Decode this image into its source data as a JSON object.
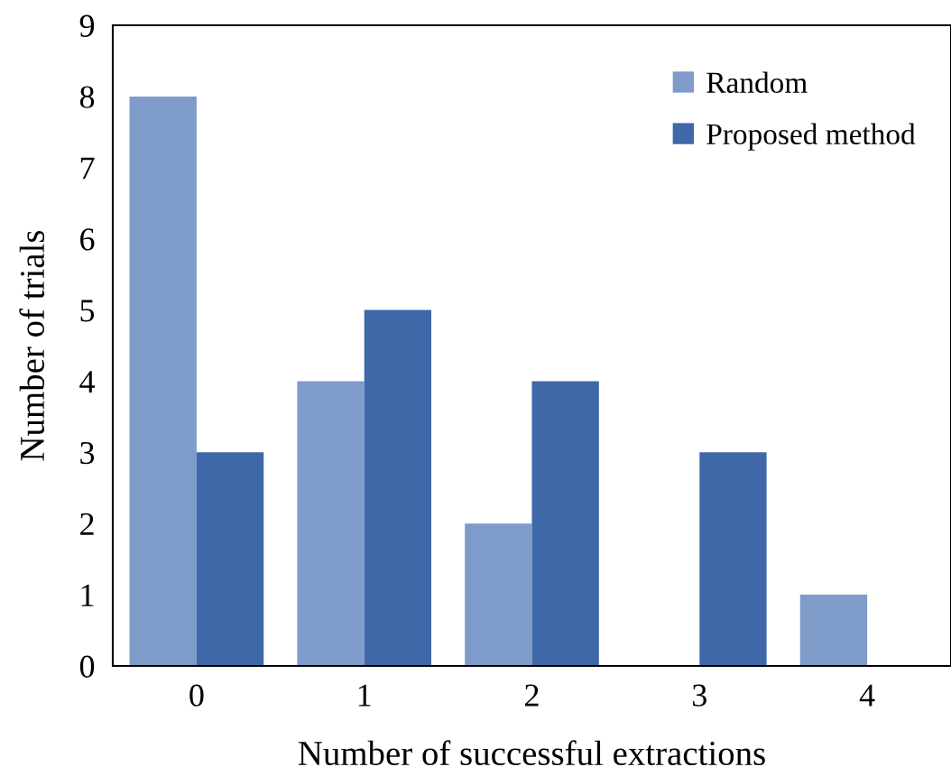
{
  "chart_data": {
    "type": "bar",
    "xlabel": "Number of successful extractions",
    "ylabel": "Number of trials",
    "categories": [
      "0",
      "1",
      "2",
      "3",
      "4"
    ],
    "series": [
      {
        "name": "Random",
        "color": "#7f9bc9",
        "values": [
          8,
          4,
          2,
          0,
          1
        ]
      },
      {
        "name": "Proposed method",
        "color": "#3e68a8",
        "values": [
          3,
          5,
          4,
          3,
          0
        ]
      }
    ],
    "ylim": [
      0,
      9
    ],
    "yticks": [
      0,
      1,
      2,
      3,
      4,
      5,
      6,
      7,
      8,
      9
    ],
    "grid": false,
    "legend": "top right"
  }
}
